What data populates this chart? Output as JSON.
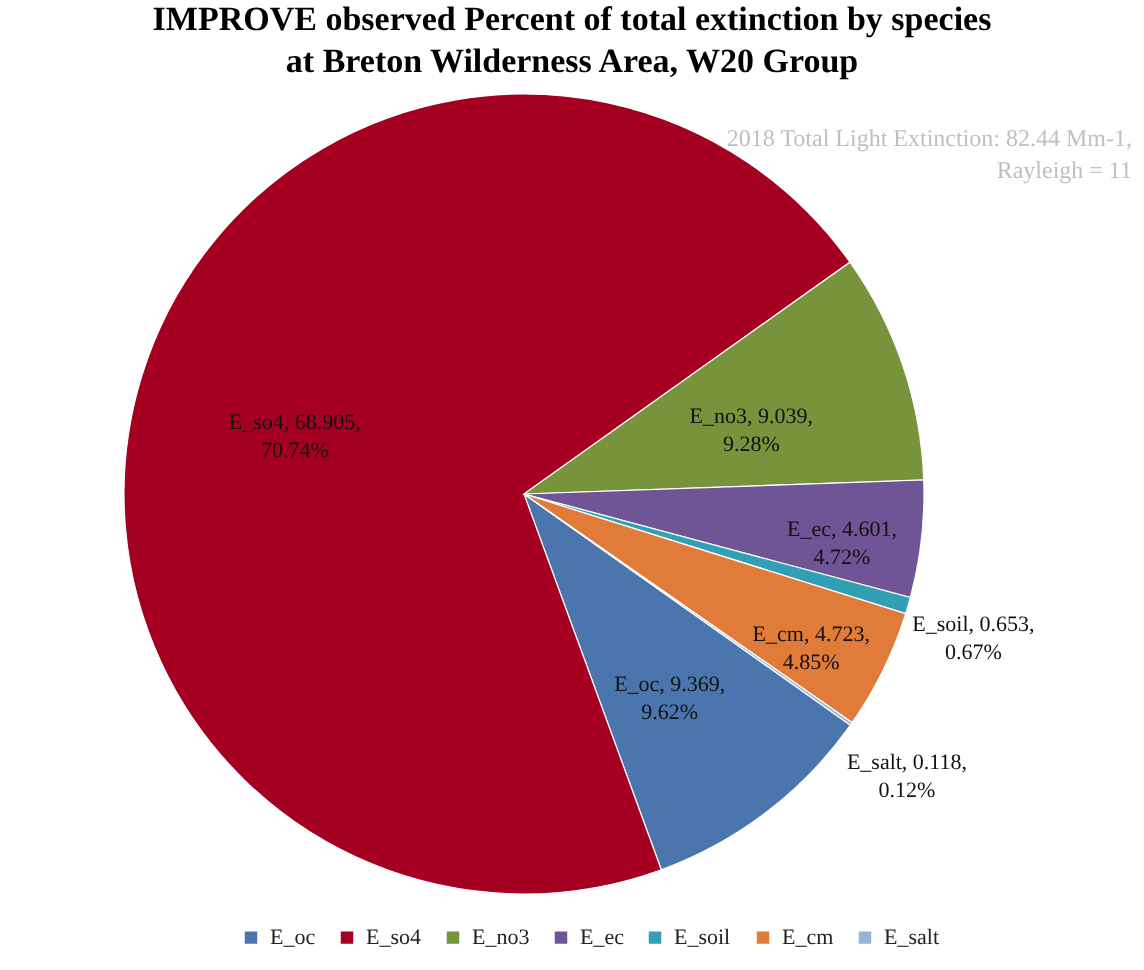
{
  "chart_data": {
    "type": "pie",
    "title": "IMPROVE observed Percent of total extinction by species at Breton Wilderness Area, W20 Group",
    "annotations": [
      "2018 Total Light Extinction: 82.44 Mm-1, Rayleigh = 11"
    ],
    "categories": [
      "E_oc",
      "E_so4",
      "E_no3",
      "E_ec",
      "E_soil",
      "E_cm",
      "E_salt"
    ],
    "values": [
      9.369,
      68.905,
      9.039,
      4.601,
      0.653,
      4.723,
      0.118
    ],
    "colors": [
      "#4a76ad",
      "#a50021",
      "#77933c",
      "#6f5596",
      "#31a0b5",
      "#e07b39",
      "#95b3d7"
    ],
    "value_labels": [
      "E_oc, 9.369, 9.62%",
      "E_so4, 68.905, 70.74%",
      "E_no3, 9.039, 9.28%",
      "E_ec, 4.601, 4.72%",
      "E_soil, 0.653, 0.67%",
      "E_cm, 4.723, 4.85%",
      "E_salt, 0.118, 0.12%"
    ],
    "legend": "bottom"
  }
}
